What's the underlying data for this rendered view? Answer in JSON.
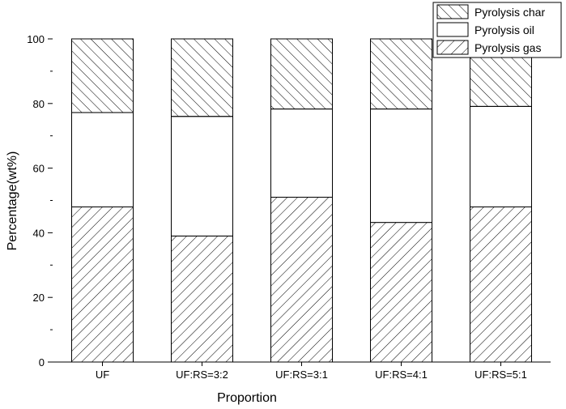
{
  "chart_data": {
    "type": "bar",
    "stacked": true,
    "xlabel": "Proportion",
    "ylabel": "Percentage(wt%)",
    "ylim": [
      0,
      100
    ],
    "yticks": [
      0,
      20,
      40,
      60,
      80,
      100
    ],
    "categories": [
      "UF",
      "UF:RS=3:2",
      "UF:RS=3:1",
      "UF:RS=4:1",
      "UF:RS=5:1"
    ],
    "series": [
      {
        "name": "Pyrolysis gas",
        "values": [
          48.0,
          39.0,
          51.0,
          43.2,
          48.0
        ],
        "fill": "hatch-forward"
      },
      {
        "name": "Pyrolysis oil",
        "values": [
          29.2,
          37.0,
          27.3,
          35.1,
          31.1
        ],
        "fill": "white"
      },
      {
        "name": "Pyrolysis char",
        "values": [
          22.8,
          24.0,
          21.7,
          21.7,
          20.9
        ],
        "fill": "hatch-backward"
      }
    ],
    "legend": {
      "position": "top-right",
      "order": [
        "Pyrolysis char",
        "Pyrolysis oil",
        "Pyrolysis gas"
      ]
    },
    "grid": false
  }
}
